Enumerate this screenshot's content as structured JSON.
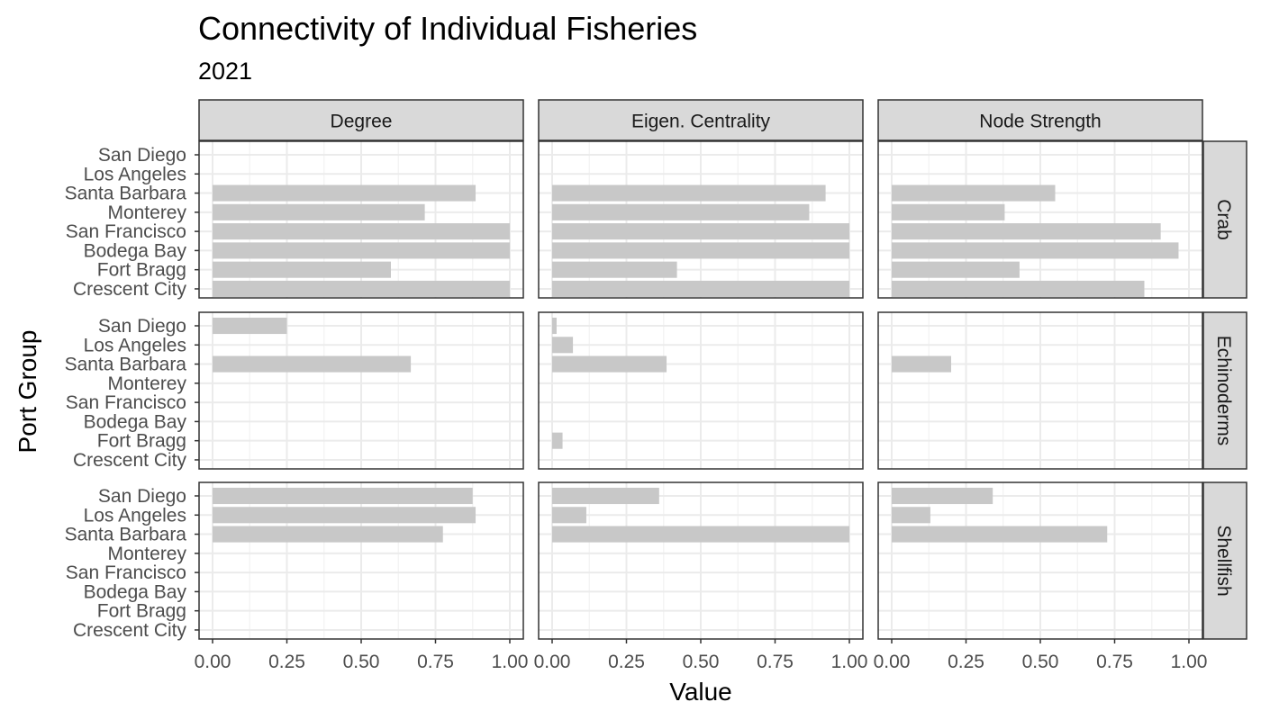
{
  "chart_data": {
    "type": "bar",
    "orientation": "horizontal",
    "title": "Connectivity of Individual Fisheries",
    "subtitle": "2021",
    "xlabel": "Value",
    "ylabel": "Port Group",
    "xlim": [
      0,
      1
    ],
    "x_ticks": [
      "0.00",
      "0.25",
      "0.50",
      "0.75",
      "1.00"
    ],
    "grid": true,
    "categories": [
      "San Diego",
      "Los Angeles",
      "Santa Barbara",
      "Monterey",
      "San Francisco",
      "Bodega Bay",
      "Fort Bragg",
      "Crescent City"
    ],
    "metrics": [
      "Degree",
      "Eigen. Centrality",
      "Node Strength"
    ],
    "groups": [
      "Crab",
      "Echinoderms",
      "Shellfish"
    ],
    "bar_color": "#c8c8c8",
    "strip_color": "#d9d9d9",
    "panels": [
      {
        "metric": "Degree",
        "group": "Crab",
        "values": [
          null,
          null,
          0.885,
          0.714,
          1.0,
          1.0,
          0.6,
          1.0
        ]
      },
      {
        "metric": "Eigen. Centrality",
        "group": "Crab",
        "values": [
          null,
          null,
          0.92,
          0.865,
          1.0,
          1.0,
          0.42,
          1.0
        ]
      },
      {
        "metric": "Node Strength",
        "group": "Crab",
        "values": [
          null,
          null,
          0.55,
          0.38,
          0.905,
          0.965,
          0.43,
          0.85
        ]
      },
      {
        "metric": "Degree",
        "group": "Echinoderms",
        "values": [
          0.25,
          null,
          0.667,
          null,
          null,
          null,
          null,
          null
        ]
      },
      {
        "metric": "Eigen. Centrality",
        "group": "Echinoderms",
        "values": [
          0.015,
          0.07,
          0.385,
          null,
          null,
          null,
          0.035,
          null
        ]
      },
      {
        "metric": "Node Strength",
        "group": "Echinoderms",
        "values": [
          null,
          null,
          0.2,
          null,
          null,
          null,
          null,
          null
        ]
      },
      {
        "metric": "Degree",
        "group": "Shellfish",
        "values": [
          0.875,
          0.885,
          0.775,
          null,
          null,
          null,
          null,
          null
        ]
      },
      {
        "metric": "Eigen. Centrality",
        "group": "Shellfish",
        "values": [
          0.36,
          0.115,
          1.0,
          null,
          null,
          null,
          null,
          null
        ]
      },
      {
        "metric": "Node Strength",
        "group": "Shellfish",
        "values": [
          0.34,
          0.13,
          0.725,
          null,
          null,
          null,
          null,
          null
        ]
      }
    ]
  }
}
